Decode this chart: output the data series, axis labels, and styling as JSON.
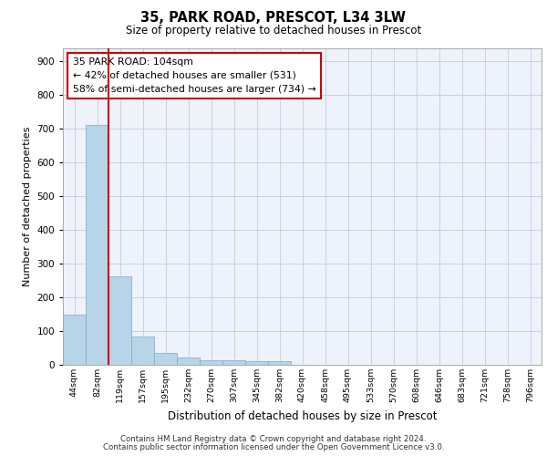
{
  "title1": "35, PARK ROAD, PRESCOT, L34 3LW",
  "title2": "Size of property relative to detached houses in Prescot",
  "xlabel": "Distribution of detached houses by size in Prescot",
  "ylabel": "Number of detached properties",
  "categories": [
    "44sqm",
    "82sqm",
    "119sqm",
    "157sqm",
    "195sqm",
    "232sqm",
    "270sqm",
    "307sqm",
    "345sqm",
    "382sqm",
    "420sqm",
    "458sqm",
    "495sqm",
    "533sqm",
    "570sqm",
    "608sqm",
    "646sqm",
    "683sqm",
    "721sqm",
    "758sqm",
    "796sqm"
  ],
  "values": [
    148,
    711,
    263,
    85,
    35,
    22,
    13,
    13,
    12,
    12,
    0,
    0,
    0,
    0,
    0,
    0,
    0,
    0,
    0,
    0,
    0
  ],
  "bar_color": "#b8d4e8",
  "bar_edge_color": "#7aaac8",
  "vline_color": "#cc0000",
  "annotation_text": "35 PARK ROAD: 104sqm\n← 42% of detached houses are smaller (531)\n58% of semi-detached houses are larger (734) →",
  "annotation_box_color": "#ffffff",
  "annotation_box_edge": "#cc0000",
  "ylim": [
    0,
    940
  ],
  "yticks": [
    0,
    100,
    200,
    300,
    400,
    500,
    600,
    700,
    800,
    900
  ],
  "footer1": "Contains HM Land Registry data © Crown copyright and database right 2024.",
  "footer2": "Contains public sector information licensed under the Open Government Licence v3.0.",
  "bg_color": "#eef2fb",
  "grid_color": "#c8d0e0"
}
